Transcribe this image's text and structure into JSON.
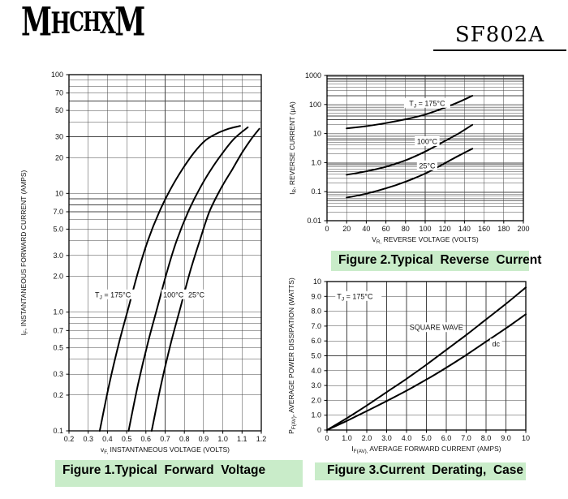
{
  "header": {
    "logo_letters": [
      "M",
      "H",
      "C",
      "H",
      "X",
      "M"
    ],
    "logo_text": "MHCHXM",
    "part_number": "SF802A"
  },
  "colors": {
    "caption_bg": "#c9ecc9",
    "ink": "#000000",
    "grid": "#444444"
  },
  "chart_data": [
    {
      "id": "figure-1",
      "type": "line",
      "caption": "Figure 1.Typical  Forward  Voltage",
      "x_scale": "linear",
      "y_scale": "log",
      "xlim": [
        0.2,
        1.2
      ],
      "ylim": [
        0.1,
        100
      ],
      "grid": "on",
      "xlabel_parts": [
        [
          "v",
          0
        ],
        [
          "F,",
          1
        ],
        [
          " INSTANTANEOUS VOLTAGE (VOLTS)",
          0
        ]
      ],
      "ylabel_parts": [
        [
          "I",
          0
        ],
        [
          "F",
          1
        ],
        [
          ", INSTANTANEOUS FORWARD CURRENT (AMPS)",
          0
        ]
      ],
      "x_ticks": [
        {
          "v": 0.2,
          "label": "0.2"
        },
        {
          "v": 0.3,
          "label": "0.3"
        },
        {
          "v": 0.4,
          "label": "0.4"
        },
        {
          "v": 0.5,
          "label": "0.5"
        },
        {
          "v": 0.6,
          "label": "0.6"
        },
        {
          "v": 0.7,
          "label": "0.7"
        },
        {
          "v": 0.8,
          "label": "0.8"
        },
        {
          "v": 0.9,
          "label": "0.9"
        },
        {
          "v": 1.0,
          "label": "1.0"
        },
        {
          "v": 1.1,
          "label": "1.1"
        },
        {
          "v": 1.2,
          "label": "1.2"
        }
      ],
      "y_ticks": [
        {
          "v": 100,
          "label": "100"
        },
        {
          "v": 70,
          "label": "70"
        },
        {
          "v": 50,
          "label": "50"
        },
        {
          "v": 30,
          "label": "30"
        },
        {
          "v": 20,
          "label": "20"
        },
        {
          "v": 10,
          "label": "10"
        },
        {
          "v": 7,
          "label": "7.0"
        },
        {
          "v": 5,
          "label": "5.0"
        },
        {
          "v": 3,
          "label": "3.0"
        },
        {
          "v": 2,
          "label": "2.0"
        },
        {
          "v": 1,
          "label": "1.0"
        },
        {
          "v": 0.7,
          "label": "0.7"
        },
        {
          "v": 0.5,
          "label": "0.5"
        },
        {
          "v": 0.3,
          "label": "0.3"
        },
        {
          "v": 0.2,
          "label": "0.2"
        },
        {
          "v": 0.1,
          "label": "0.1"
        }
      ],
      "series": [
        {
          "name": "TJ = 175°C",
          "points": [
            [
              0.36,
              0.1
            ],
            [
              0.41,
              0.25
            ],
            [
              0.46,
              0.55
            ],
            [
              0.51,
              1.1
            ],
            [
              0.56,
              2.2
            ],
            [
              0.61,
              4.0
            ],
            [
              0.67,
              7.0
            ],
            [
              0.73,
              11
            ],
            [
              0.79,
              16
            ],
            [
              0.85,
              22
            ],
            [
              0.91,
              28
            ],
            [
              0.97,
              32
            ],
            [
              1.03,
              35
            ],
            [
              1.09,
              37
            ]
          ]
        },
        {
          "name": "100°C",
          "points": [
            [
              0.51,
              0.1
            ],
            [
              0.56,
              0.25
            ],
            [
              0.61,
              0.55
            ],
            [
              0.66,
              1.1
            ],
            [
              0.71,
              2.2
            ],
            [
              0.76,
              4.0
            ],
            [
              0.82,
              7.0
            ],
            [
              0.88,
              11
            ],
            [
              0.94,
              16
            ],
            [
              1.0,
              22
            ],
            [
              1.06,
              29
            ],
            [
              1.13,
              36
            ]
          ]
        },
        {
          "name": "25°C",
          "points": [
            [
              0.63,
              0.1
            ],
            [
              0.68,
              0.25
            ],
            [
              0.73,
              0.55
            ],
            [
              0.78,
              1.1
            ],
            [
              0.83,
              2.2
            ],
            [
              0.88,
              4.0
            ],
            [
              0.93,
              7.0
            ],
            [
              0.99,
              11
            ],
            [
              1.05,
              16
            ],
            [
              1.1,
              22
            ],
            [
              1.15,
              29
            ],
            [
              1.19,
              35
            ]
          ]
        }
      ],
      "annotations": [
        {
          "parts": [
            [
              "T",
              0
            ],
            [
              "J",
              1
            ],
            [
              " = 175°C",
              0
            ]
          ],
          "x": 0.335,
          "y": 1.4,
          "anchor": "start"
        },
        {
          "parts": [
            [
              "100°C",
              0
            ]
          ],
          "x": 0.69,
          "y": 1.4,
          "anchor": "start"
        },
        {
          "parts": [
            [
              "25°C",
              0
            ]
          ],
          "x": 0.82,
          "y": 1.4,
          "anchor": "start"
        }
      ]
    },
    {
      "id": "figure-2",
      "type": "line",
      "caption": "Figure 2.Typical  Reverse  Current",
      "x_scale": "linear",
      "y_scale": "log",
      "xlim": [
        0,
        200
      ],
      "ylim": [
        0.01,
        1000
      ],
      "grid": "on",
      "xlabel_parts": [
        [
          "V",
          0
        ],
        [
          "R,",
          1
        ],
        [
          " REVERSE VOLTAGE (VOLTS)",
          0
        ]
      ],
      "ylabel_parts": [
        [
          "I",
          0
        ],
        [
          "R",
          1
        ],
        [
          ", REVERSE CURRENT (μA)",
          0
        ]
      ],
      "x_ticks": [
        {
          "v": 0,
          "label": "0"
        },
        {
          "v": 20,
          "label": "20"
        },
        {
          "v": 40,
          "label": "40"
        },
        {
          "v": 60,
          "label": "60"
        },
        {
          "v": 80,
          "label": "80"
        },
        {
          "v": 100,
          "label": "100"
        },
        {
          "v": 120,
          "label": "120"
        },
        {
          "v": 140,
          "label": "140"
        },
        {
          "v": 160,
          "label": "160"
        },
        {
          "v": 180,
          "label": "180"
        },
        {
          "v": 200,
          "label": "200"
        }
      ],
      "y_ticks": [
        {
          "v": 1000,
          "label": "1000"
        },
        {
          "v": 100,
          "label": "100"
        },
        {
          "v": 10,
          "label": "10"
        },
        {
          "v": 1,
          "label": "1.0"
        },
        {
          "v": 0.1,
          "label": "0.1"
        },
        {
          "v": 0.01,
          "label": "0.01"
        }
      ],
      "series": [
        {
          "name": "TJ = 175°C",
          "points": [
            [
              20,
              15
            ],
            [
              40,
              18
            ],
            [
              60,
              23
            ],
            [
              80,
              31
            ],
            [
              100,
              45
            ],
            [
              120,
              78
            ],
            [
              135,
              125
            ],
            [
              148,
              200
            ]
          ]
        },
        {
          "name": "100°C",
          "points": [
            [
              20,
              0.38
            ],
            [
              40,
              0.5
            ],
            [
              60,
              0.72
            ],
            [
              80,
              1.2
            ],
            [
              100,
              2.4
            ],
            [
              120,
              5.5
            ],
            [
              135,
              10.5
            ],
            [
              148,
              20
            ]
          ]
        },
        {
          "name": "25°C",
          "points": [
            [
              20,
              0.062
            ],
            [
              40,
              0.085
            ],
            [
              60,
              0.13
            ],
            [
              80,
              0.22
            ],
            [
              100,
              0.42
            ],
            [
              120,
              0.95
            ],
            [
              135,
              1.8
            ],
            [
              148,
              3.0
            ]
          ]
        }
      ],
      "annotations": [
        {
          "parts": [
            [
              "T",
              0
            ],
            [
              "J",
              1
            ],
            [
              " = 175°C",
              0
            ]
          ],
          "x": 102,
          "y": 110,
          "anchor": "middle"
        },
        {
          "parts": [
            [
              "100°C",
              0
            ]
          ],
          "x": 102,
          "y": 5.3,
          "anchor": "middle"
        },
        {
          "parts": [
            [
              "25°C",
              0
            ]
          ],
          "x": 102,
          "y": 0.78,
          "anchor": "middle"
        }
      ]
    },
    {
      "id": "figure-3",
      "type": "line",
      "caption": "Figure 3.Current  Derating,  Case",
      "x_scale": "linear",
      "y_scale": "linear",
      "xlim": [
        0,
        10
      ],
      "ylim": [
        0,
        10
      ],
      "grid": "on",
      "xlabel_parts": [
        [
          "I",
          0
        ],
        [
          "F(AV),",
          1
        ],
        [
          " AVERAGE FORWARD CURRENT (AMPS)",
          0
        ]
      ],
      "ylabel_parts": [
        [
          "P",
          0
        ],
        [
          "F(AV)",
          1
        ],
        [
          ", AVERAGE POWER DISSIPATION (WATTS)",
          0
        ]
      ],
      "x_ticks": [
        {
          "v": 0,
          "label": "0"
        },
        {
          "v": 1,
          "label": "1.0"
        },
        {
          "v": 2,
          "label": "2.0"
        },
        {
          "v": 3,
          "label": "3.0"
        },
        {
          "v": 4,
          "label": "4.0"
        },
        {
          "v": 5,
          "label": "5.0"
        },
        {
          "v": 6,
          "label": "6.0"
        },
        {
          "v": 7,
          "label": "7.0"
        },
        {
          "v": 8,
          "label": "8.0"
        },
        {
          "v": 9,
          "label": "9.0"
        },
        {
          "v": 10,
          "label": "10"
        }
      ],
      "y_ticks": [
        {
          "v": 10,
          "label": "10"
        },
        {
          "v": 9,
          "label": "9.0"
        },
        {
          "v": 8,
          "label": "8.0"
        },
        {
          "v": 7,
          "label": "7.0"
        },
        {
          "v": 6,
          "label": "6.0"
        },
        {
          "v": 5,
          "label": "5.0"
        },
        {
          "v": 4,
          "label": "4.0"
        },
        {
          "v": 3,
          "label": "3.0"
        },
        {
          "v": 2,
          "label": "2.0"
        },
        {
          "v": 1,
          "label": "1.0"
        },
        {
          "v": 0,
          "label": "0"
        }
      ],
      "series": [
        {
          "name": "SQUARE WAVE",
          "points": [
            [
              0,
              0
            ],
            [
              1,
              0.8
            ],
            [
              2,
              1.65
            ],
            [
              3,
              2.55
            ],
            [
              4,
              3.45
            ],
            [
              5,
              4.4
            ],
            [
              6,
              5.4
            ],
            [
              7,
              6.4
            ],
            [
              8,
              7.45
            ],
            [
              9,
              8.5
            ],
            [
              10,
              9.6
            ]
          ]
        },
        {
          "name": "dc",
          "points": [
            [
              0,
              0
            ],
            [
              1,
              0.62
            ],
            [
              2,
              1.28
            ],
            [
              3,
              1.95
            ],
            [
              4,
              2.65
            ],
            [
              5,
              3.4
            ],
            [
              6,
              4.2
            ],
            [
              7,
              5.05
            ],
            [
              8,
              5.95
            ],
            [
              9,
              6.85
            ],
            [
              10,
              7.8
            ]
          ]
        }
      ],
      "annotations": [
        {
          "parts": [
            [
              "T",
              0
            ],
            [
              "J",
              1
            ],
            [
              " = 175°C",
              0
            ]
          ],
          "x": 0.5,
          "y": 9.0,
          "anchor": "start"
        },
        {
          "parts": [
            [
              "SQUARE WAVE",
              0
            ]
          ],
          "x": 5.5,
          "y": 6.9,
          "anchor": "middle"
        },
        {
          "parts": [
            [
              "dc",
              0
            ]
          ],
          "x": 8.5,
          "y": 5.8,
          "anchor": "middle"
        }
      ]
    }
  ]
}
